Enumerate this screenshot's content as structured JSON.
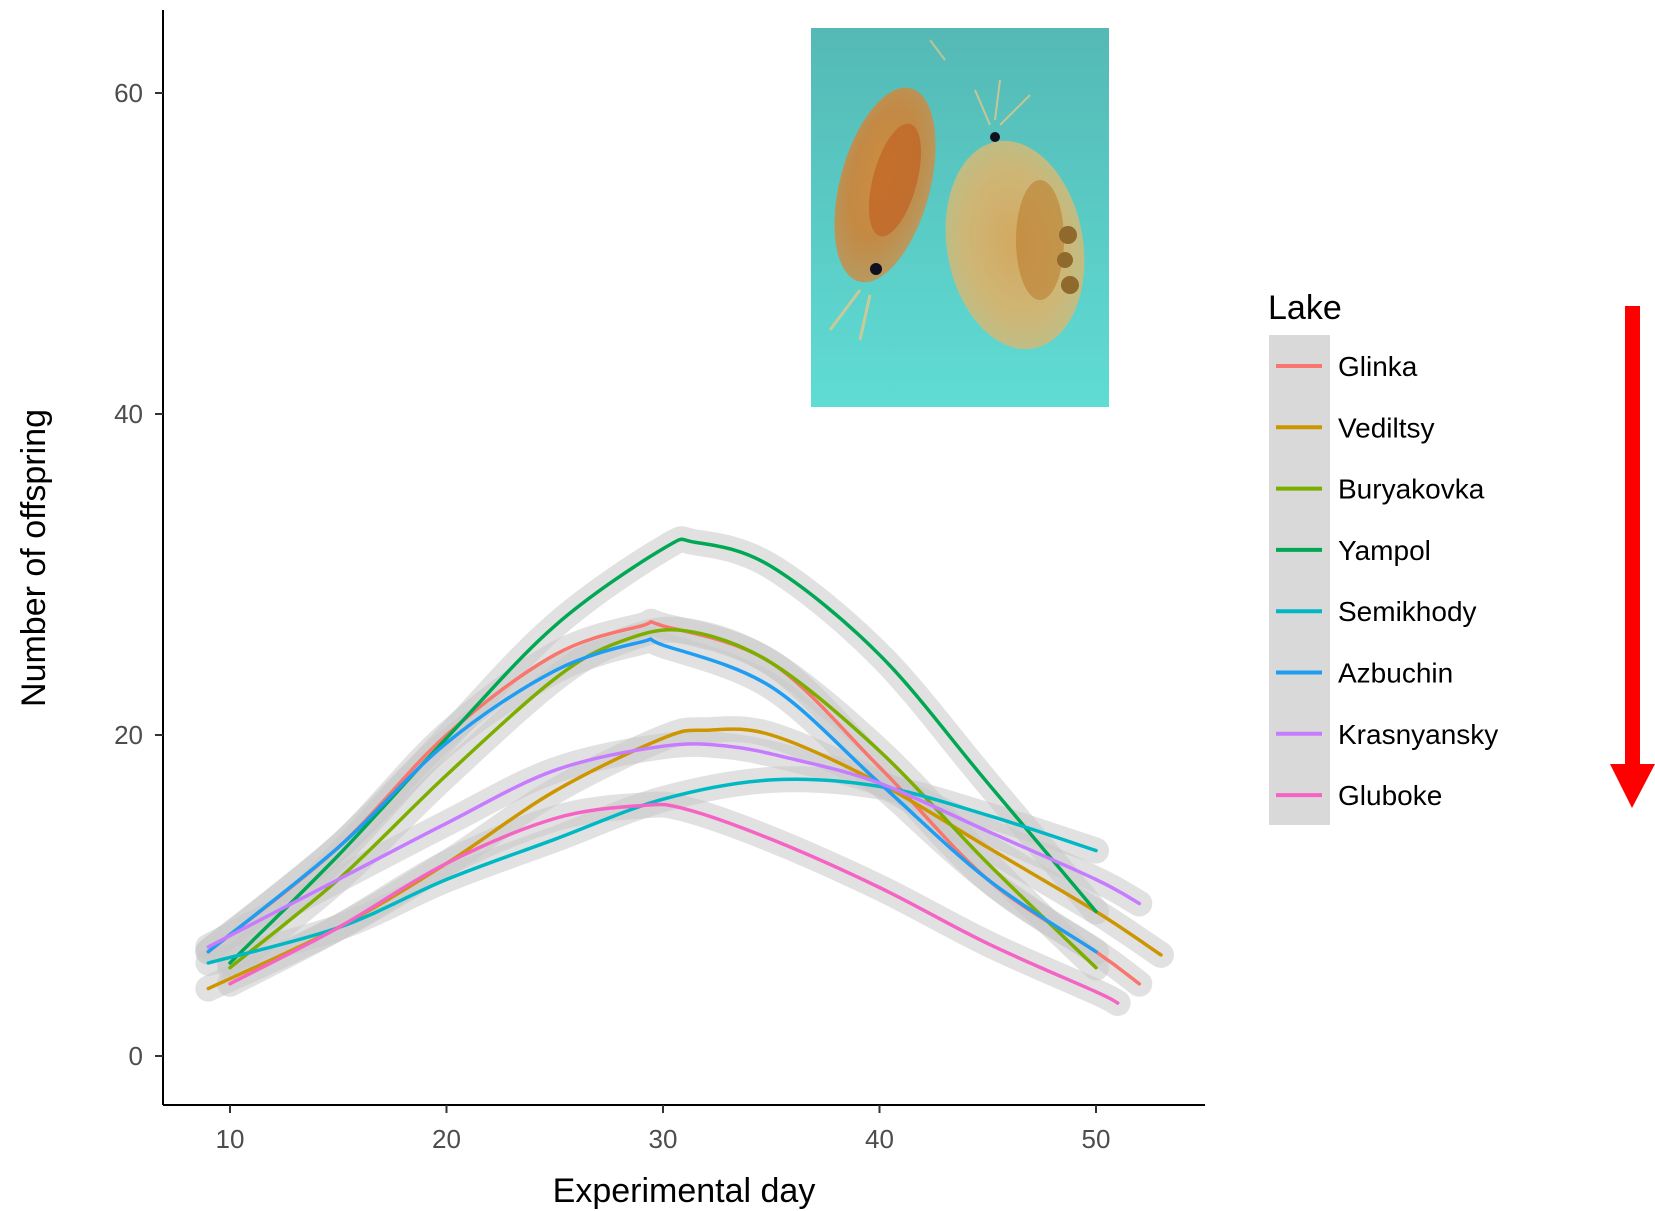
{
  "chart_data": {
    "type": "line",
    "title": "",
    "xlabel": "Experimental day",
    "ylabel": "Number of offspring",
    "xlim": [
      7,
      55
    ],
    "ylim": [
      -3,
      65
    ],
    "xticks": [
      10,
      20,
      30,
      40,
      50
    ],
    "yticks": [
      0,
      20,
      40,
      60
    ],
    "grid": false,
    "legend": {
      "title": "Lake",
      "position": "right"
    },
    "smoothing_band": true,
    "series": [
      {
        "name": "Glinka",
        "color": "#F8766D",
        "points": [
          [
            9,
            6.5
          ],
          [
            15,
            13
          ],
          [
            20,
            20
          ],
          [
            25,
            25
          ],
          [
            29,
            26.8
          ],
          [
            30,
            26.8
          ],
          [
            35,
            24.5
          ],
          [
            40,
            18
          ],
          [
            45,
            11
          ],
          [
            50,
            6.5
          ],
          [
            52,
            4.5
          ]
        ]
      },
      {
        "name": "Vediltsy",
        "color": "#CD9600",
        "points": [
          [
            9,
            4.2
          ],
          [
            15,
            8
          ],
          [
            20,
            12
          ],
          [
            25,
            16.5
          ],
          [
            30,
            19.8
          ],
          [
            32,
            20.3
          ],
          [
            35,
            20
          ],
          [
            40,
            17
          ],
          [
            45,
            13
          ],
          [
            50,
            9
          ],
          [
            53,
            6.3
          ]
        ]
      },
      {
        "name": "Buryakovka",
        "color": "#7CAE00",
        "points": [
          [
            10,
            5.5
          ],
          [
            15,
            11
          ],
          [
            20,
            17.5
          ],
          [
            25,
            23.5
          ],
          [
            28,
            25.8
          ],
          [
            31,
            26.5
          ],
          [
            35,
            24.5
          ],
          [
            40,
            19
          ],
          [
            45,
            12
          ],
          [
            50,
            5.5
          ]
        ]
      },
      {
        "name": "Yampol",
        "color": "#00A853",
        "points": [
          [
            10,
            5.8
          ],
          [
            15,
            12.5
          ],
          [
            20,
            19.8
          ],
          [
            25,
            26.8
          ],
          [
            30,
            31.6
          ],
          [
            31.5,
            32
          ],
          [
            35,
            30.5
          ],
          [
            40,
            25
          ],
          [
            45,
            17
          ],
          [
            50,
            9
          ]
        ]
      },
      {
        "name": "Semikhody",
        "color": "#00B8C4",
        "points": [
          [
            9,
            5.8
          ],
          [
            15,
            8
          ],
          [
            20,
            11
          ],
          [
            25,
            13.5
          ],
          [
            30,
            16
          ],
          [
            35,
            17.2
          ],
          [
            40,
            16.8
          ],
          [
            45,
            15
          ],
          [
            50,
            12.8
          ]
        ]
      },
      {
        "name": "Azbuchin",
        "color": "#1E9DF2",
        "points": [
          [
            9,
            6.5
          ],
          [
            15,
            13
          ],
          [
            20,
            19.5
          ],
          [
            25,
            24
          ],
          [
            29,
            25.8
          ],
          [
            30,
            25.6
          ],
          [
            35,
            23
          ],
          [
            40,
            17
          ],
          [
            45,
            11
          ],
          [
            50,
            6.5
          ]
        ]
      },
      {
        "name": "Krasnyansky",
        "color": "#C77CFF",
        "points": [
          [
            9,
            6.8
          ],
          [
            15,
            11
          ],
          [
            20,
            14.5
          ],
          [
            25,
            17.8
          ],
          [
            30,
            19.3
          ],
          [
            33,
            19.3
          ],
          [
            36,
            18.5
          ],
          [
            40,
            17
          ],
          [
            45,
            14
          ],
          [
            50,
            11
          ],
          [
            52,
            9.5
          ]
        ]
      },
      {
        "name": "Gluboke",
        "color": "#F563C5",
        "points": [
          [
            10,
            4.5
          ],
          [
            15,
            8
          ],
          [
            20,
            12
          ],
          [
            25,
            14.8
          ],
          [
            29,
            15.6
          ],
          [
            31,
            15.4
          ],
          [
            35,
            13.5
          ],
          [
            40,
            10.5
          ],
          [
            45,
            7
          ],
          [
            50,
            4
          ],
          [
            51,
            3.3
          ]
        ]
      }
    ]
  },
  "inset_photo": {
    "subject": "daphnia",
    "background": "#3FC4BA"
  },
  "arrow": {
    "color": "#FF0000",
    "direction": "down"
  }
}
